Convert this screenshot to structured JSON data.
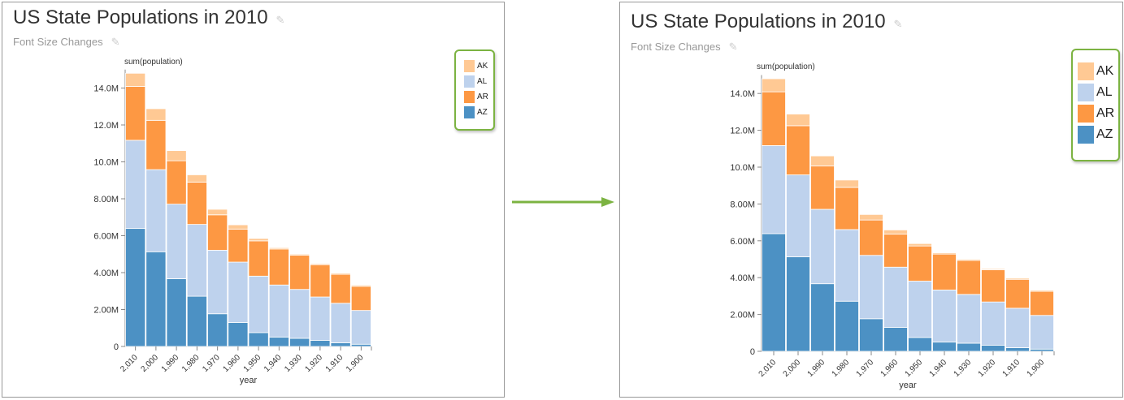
{
  "panels": [
    {
      "title": "US State Populations in 2010",
      "subtitle": "Font Size Changes",
      "legend_size": "small"
    },
    {
      "title": "US State Populations in 2010",
      "subtitle": "Font Size Changes",
      "legend_size": "large"
    }
  ],
  "icons": {
    "title_edit": "pencil-icon",
    "subtitle_edit": "pencil-icon",
    "transition": "arrow-right-icon"
  },
  "colors": {
    "AK": "#ffc994",
    "AL": "#bed2ed",
    "AR": "#fd9843",
    "AZ": "#4c91c4",
    "legend_highlight": "#7cb342",
    "arrow": "#7cb342"
  },
  "chart_data": [
    {
      "type": "bar",
      "stacked": true,
      "title": "US State Populations in 2010",
      "subtitle": "Font Size Changes",
      "xlabel": "year",
      "ylabel": "sum(population)",
      "categories": [
        "2,010",
        "2,000",
        "1,990",
        "1,980",
        "1,970",
        "1,960",
        "1,950",
        "1,940",
        "1,930",
        "1,920",
        "1,910",
        "1,900"
      ],
      "yticks": [
        "0",
        "2.00M",
        "4.00M",
        "6.00M",
        "8.00M",
        "10.0M",
        "12.0M",
        "14.0M"
      ],
      "ylim": [
        0,
        15000000
      ],
      "grid": false,
      "legend": "top-right",
      "series": [
        {
          "name": "AZ",
          "values": [
            6390000,
            5130000,
            3670000,
            2720000,
            1770000,
            1300000,
            750000,
            500000,
            440000,
            330000,
            200000,
            120000
          ]
        },
        {
          "name": "AL",
          "values": [
            4780000,
            4450000,
            4040000,
            3890000,
            3440000,
            3270000,
            3060000,
            2830000,
            2650000,
            2350000,
            2140000,
            1830000
          ]
        },
        {
          "name": "AR",
          "values": [
            2920000,
            2670000,
            2350000,
            2290000,
            1920000,
            1790000,
            1910000,
            1950000,
            1850000,
            1750000,
            1570000,
            1310000
          ]
        },
        {
          "name": "AK",
          "values": [
            710000,
            630000,
            550000,
            400000,
            300000,
            230000,
            130000,
            70000,
            60000,
            55000,
            64000,
            64000
          ]
        }
      ],
      "legend_entries": [
        "AK",
        "AL",
        "AR",
        "AZ"
      ]
    },
    {
      "type": "bar",
      "stacked": true,
      "title": "US State Populations in 2010",
      "subtitle": "Font Size Changes",
      "xlabel": "year",
      "ylabel": "sum(population)",
      "categories": [
        "2,010",
        "2,000",
        "1,990",
        "1,980",
        "1,970",
        "1,960",
        "1,950",
        "1,940",
        "1,930",
        "1,920",
        "1,910",
        "1,900"
      ],
      "yticks": [
        "0",
        "2.00M",
        "4.00M",
        "6.00M",
        "8.00M",
        "10.0M",
        "12.0M",
        "14.0M"
      ],
      "ylim": [
        0,
        15000000
      ],
      "grid": false,
      "legend": "top-right",
      "series": [
        {
          "name": "AZ",
          "values": [
            6390000,
            5130000,
            3670000,
            2720000,
            1770000,
            1300000,
            750000,
            500000,
            440000,
            330000,
            200000,
            120000
          ]
        },
        {
          "name": "AL",
          "values": [
            4780000,
            4450000,
            4040000,
            3890000,
            3440000,
            3270000,
            3060000,
            2830000,
            2650000,
            2350000,
            2140000,
            1830000
          ]
        },
        {
          "name": "AR",
          "values": [
            2920000,
            2670000,
            2350000,
            2290000,
            1920000,
            1790000,
            1910000,
            1950000,
            1850000,
            1750000,
            1570000,
            1310000
          ]
        },
        {
          "name": "AK",
          "values": [
            710000,
            630000,
            550000,
            400000,
            300000,
            230000,
            130000,
            70000,
            60000,
            55000,
            64000,
            64000
          ]
        }
      ],
      "legend_entries": [
        "AK",
        "AL",
        "AR",
        "AZ"
      ]
    }
  ]
}
